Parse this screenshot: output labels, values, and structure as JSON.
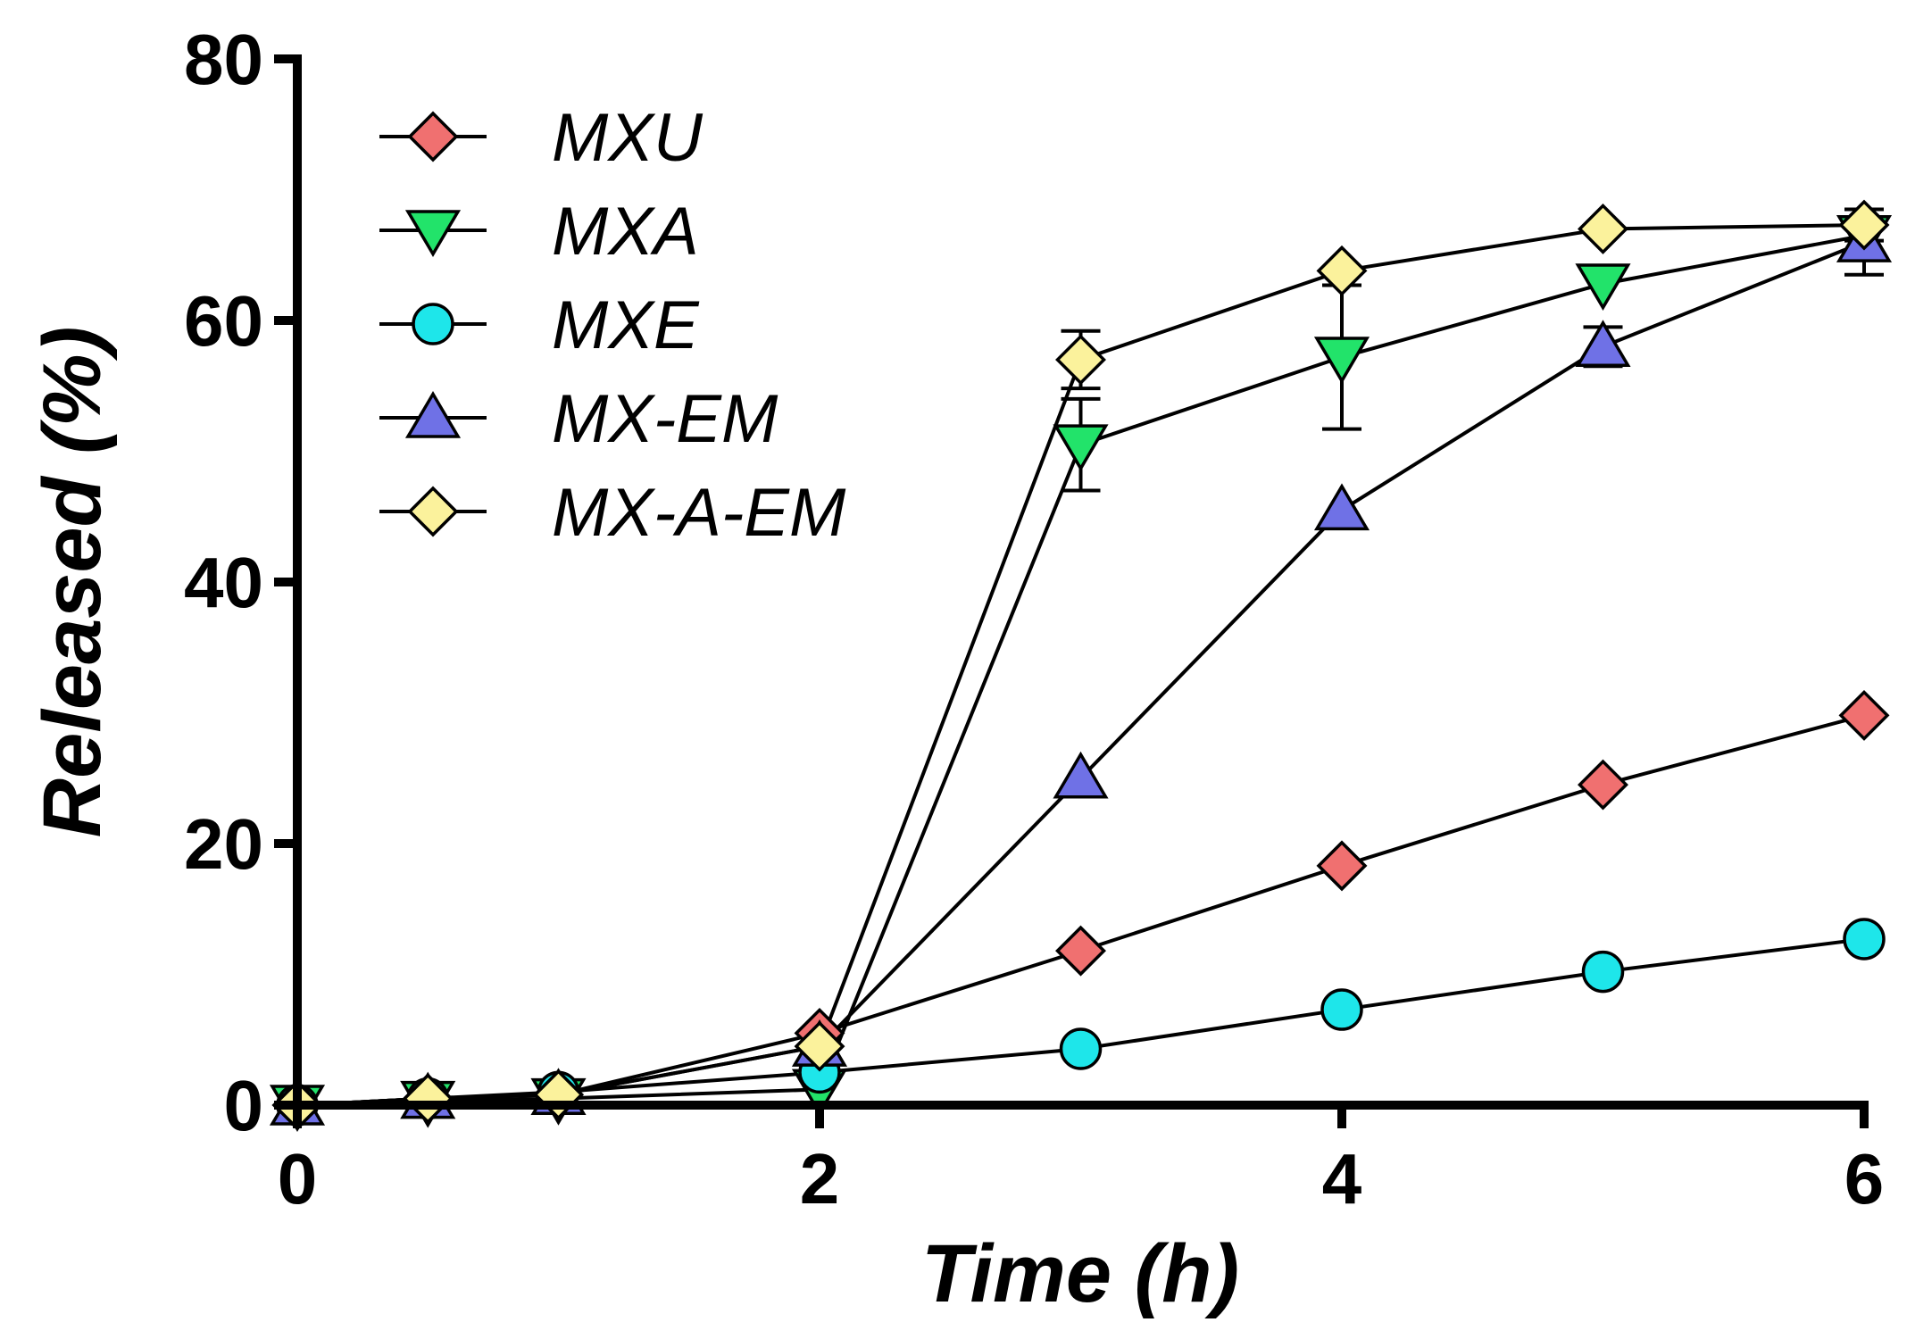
{
  "chart_data": {
    "type": "line",
    "title": "",
    "xlabel": "Time (h)",
    "ylabel": "Released (%)",
    "xlim": [
      0,
      6
    ],
    "ylim": [
      0,
      80
    ],
    "xticks": [
      0,
      2,
      4,
      6
    ],
    "yticks": [
      0,
      20,
      40,
      60,
      80
    ],
    "grid": false,
    "legend_position": "top-left",
    "x": [
      0,
      0.5,
      1,
      2,
      3,
      4,
      5,
      6
    ],
    "series": [
      {
        "name": "MXU",
        "marker": "diamond",
        "color": "#f07070",
        "values": [
          0,
          0.5,
          0.8,
          5.5,
          11.8,
          18.3,
          24.5,
          29.8
        ],
        "errors": [
          0,
          0,
          0,
          0,
          0,
          0,
          0,
          0
        ]
      },
      {
        "name": "MXA",
        "marker": "triangle-down",
        "color": "#22e36a",
        "values": [
          0,
          0.3,
          0.5,
          1.2,
          50.5,
          57.2,
          62.8,
          66.5
        ],
        "errors": [
          0,
          0,
          0,
          0,
          3.5,
          5.5,
          0,
          0
        ]
      },
      {
        "name": "MXE",
        "marker": "circle",
        "color": "#1ee6ea",
        "values": [
          0,
          0.5,
          1.0,
          2.5,
          4.3,
          7.3,
          10.2,
          12.7
        ],
        "errors": [
          0,
          0,
          0,
          0,
          0,
          0,
          0,
          0
        ]
      },
      {
        "name": "MX-EM",
        "marker": "triangle-up",
        "color": "#6f71e6",
        "values": [
          0,
          0.5,
          0.8,
          4.5,
          25.0,
          45.5,
          58.0,
          66.0
        ],
        "errors": [
          0,
          0,
          0,
          0,
          0,
          0,
          1.5,
          2.5
        ]
      },
      {
        "name": "MX-A-EM",
        "marker": "diamond",
        "color": "#fbf29c",
        "values": [
          0,
          0.5,
          0.8,
          4.5,
          57.0,
          63.8,
          67.0,
          67.3
        ],
        "errors": [
          0,
          0,
          0,
          0,
          2.2,
          0,
          0,
          1.2
        ]
      }
    ]
  }
}
